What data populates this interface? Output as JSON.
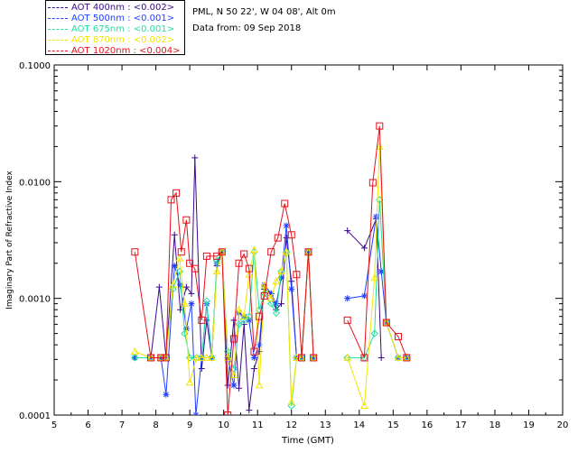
{
  "header": {
    "location": "PML, N 50 22', W 04 08', Alt 0m",
    "date_line": "Data from: 09 Sep 2018"
  },
  "legend": [
    {
      "label": "AOT  400nm : <0.002>",
      "color": "#3b0a8f"
    },
    {
      "label": "AOT  500nm : <0.001>",
      "color": "#1f3fff"
    },
    {
      "label": "AOT  675nm : <0.001>",
      "color": "#22e0a0"
    },
    {
      "label": "AOT  870nm : <0.002>",
      "color": "#f4e400"
    },
    {
      "label": "AOT 1020nm : <0.004>",
      "color": "#e8101a"
    }
  ],
  "chart_data": {
    "type": "line",
    "title": "",
    "xlabel": "Time (GMT)",
    "ylabel": "Imaginary Part of Refractive Index",
    "xlim": [
      5,
      20
    ],
    "ylim": [
      0.0001,
      0.1
    ],
    "yscale": "log",
    "xticks": [
      "5",
      "6",
      "7",
      "8",
      "9",
      "10",
      "11",
      "12",
      "13",
      "14",
      "15",
      "16",
      "17",
      "18",
      "19",
      "20"
    ],
    "yticks": [
      "0.0001",
      "0.0010",
      "0.0100",
      "0.1000"
    ],
    "series": [
      {
        "name": "AOT 400nm",
        "marker": "plus",
        "points": [
          [
            7.38,
            0.00031
          ],
          [
            7.85,
            0.00031
          ],
          [
            8.1,
            0.00125
          ],
          [
            8.3,
            0.00031
          ],
          [
            8.55,
            0.0035
          ],
          [
            8.72,
            0.0008
          ],
          [
            8.9,
            0.00125
          ],
          [
            9.05,
            0.0011
          ],
          [
            9.15,
            0.016
          ],
          [
            9.35,
            0.00025
          ],
          [
            9.5,
            0.00065
          ],
          [
            9.65,
            0.00031
          ],
          [
            9.8,
            0.0019
          ],
          [
            9.95,
            0.0025
          ],
          [
            10.12,
            0.00018
          ],
          [
            10.3,
            0.00065
          ],
          [
            10.45,
            0.00017
          ],
          [
            10.6,
            0.0006
          ],
          [
            10.75,
            0.00011
          ],
          [
            10.9,
            0.00025
          ],
          [
            11.05,
            0.00035
          ],
          [
            11.2,
            0.0012
          ],
          [
            11.4,
            0.0011
          ],
          [
            11.55,
            0.0008
          ],
          [
            11.7,
            0.0009
          ],
          [
            11.85,
            0.0033
          ],
          [
            12.0,
            0.0014
          ],
          [
            12.15,
            0.00031
          ],
          [
            12.3,
            0.00031
          ],
          [
            12.5,
            0.0025
          ],
          [
            12.65,
            0.00031
          ],
          [
            13.65,
            0.0038
          ],
          [
            14.15,
            0.0027
          ],
          [
            14.5,
            0.0048
          ],
          [
            14.65,
            0.00031
          ]
        ]
      },
      {
        "name": "AOT 500nm",
        "marker": "star",
        "points": [
          [
            7.38,
            0.00031
          ],
          [
            7.85,
            0.00031
          ],
          [
            8.15,
            0.00031
          ],
          [
            8.3,
            0.00015
          ],
          [
            8.55,
            0.0019
          ],
          [
            8.72,
            0.0013
          ],
          [
            8.9,
            0.00055
          ],
          [
            9.05,
            0.0009
          ],
          [
            9.18,
            0.0001
          ],
          [
            9.35,
            0.00031
          ],
          [
            9.5,
            0.0009
          ],
          [
            9.65,
            0.00031
          ],
          [
            9.8,
            0.002
          ],
          [
            9.95,
            0.0025
          ],
          [
            10.12,
            0.00031
          ],
          [
            10.3,
            0.00018
          ],
          [
            10.45,
            0.00075
          ],
          [
            10.6,
            0.0007
          ],
          [
            10.75,
            0.00065
          ],
          [
            10.9,
            0.00031
          ],
          [
            11.05,
            0.0004
          ],
          [
            11.2,
            0.0013
          ],
          [
            11.4,
            0.0011
          ],
          [
            11.55,
            0.0009
          ],
          [
            11.7,
            0.0015
          ],
          [
            11.85,
            0.0042
          ],
          [
            12.0,
            0.0012
          ],
          [
            12.15,
            0.00031
          ],
          [
            12.3,
            0.00031
          ],
          [
            12.5,
            0.0025
          ],
          [
            12.65,
            0.00031
          ],
          [
            13.65,
            0.001
          ],
          [
            14.15,
            0.00105
          ],
          [
            14.5,
            0.005
          ],
          [
            14.65,
            0.0017
          ],
          [
            14.8,
            0.00062
          ],
          [
            15.15,
            0.00031
          ],
          [
            15.4,
            0.00031
          ]
        ]
      },
      {
        "name": "AOT 675nm",
        "marker": "diamond",
        "points": [
          [
            7.38,
            0.00031
          ],
          [
            7.85,
            0.00031
          ],
          [
            8.15,
            0.00031
          ],
          [
            8.3,
            0.00031
          ],
          [
            8.5,
            0.0012
          ],
          [
            8.7,
            0.0017
          ],
          [
            8.85,
            0.0005
          ],
          [
            9.0,
            0.00031
          ],
          [
            9.2,
            0.00031
          ],
          [
            9.35,
            0.00031
          ],
          [
            9.5,
            0.00095
          ],
          [
            9.65,
            0.00031
          ],
          [
            9.8,
            0.0021
          ],
          [
            9.95,
            0.0025
          ],
          [
            10.12,
            0.00035
          ],
          [
            10.3,
            0.00025
          ],
          [
            10.45,
            0.0006
          ],
          [
            10.6,
            0.00065
          ],
          [
            10.75,
            0.0007
          ],
          [
            10.9,
            0.0025
          ],
          [
            11.05,
            0.0008
          ],
          [
            11.2,
            0.0011
          ],
          [
            11.4,
            0.0009
          ],
          [
            11.55,
            0.00075
          ],
          [
            11.7,
            0.0017
          ],
          [
            11.85,
            0.0025
          ],
          [
            12.0,
            0.00012
          ],
          [
            12.15,
            0.00031
          ],
          [
            12.3,
            0.00031
          ],
          [
            12.5,
            0.0025
          ],
          [
            12.65,
            0.00031
          ],
          [
            13.65,
            0.00031
          ],
          [
            14.15,
            0.00031
          ],
          [
            14.45,
            0.0005
          ],
          [
            14.6,
            0.007
          ],
          [
            14.8,
            0.00062
          ],
          [
            15.15,
            0.00031
          ],
          [
            15.4,
            0.00031
          ]
        ]
      },
      {
        "name": "AOT 870nm",
        "marker": "triangle",
        "points": [
          [
            7.38,
            0.00035
          ],
          [
            7.85,
            0.00031
          ],
          [
            8.15,
            0.00031
          ],
          [
            8.3,
            0.00031
          ],
          [
            8.5,
            0.0013
          ],
          [
            8.7,
            0.0022
          ],
          [
            8.85,
            0.0009
          ],
          [
            9.0,
            0.00019
          ],
          [
            9.2,
            0.00031
          ],
          [
            9.35,
            0.00031
          ],
          [
            9.5,
            0.00031
          ],
          [
            9.65,
            0.00031
          ],
          [
            9.8,
            0.0017
          ],
          [
            9.95,
            0.0025
          ],
          [
            10.12,
            0.00031
          ],
          [
            10.3,
            0.00022
          ],
          [
            10.45,
            0.0008
          ],
          [
            10.6,
            0.0007
          ],
          [
            10.75,
            0.0016
          ],
          [
            10.9,
            0.0026
          ],
          [
            11.05,
            0.00018
          ],
          [
            11.2,
            0.0013
          ],
          [
            11.4,
            0.001
          ],
          [
            11.55,
            0.0014
          ],
          [
            11.7,
            0.0017
          ],
          [
            11.85,
            0.0025
          ],
          [
            12.0,
            0.00013
          ],
          [
            12.15,
            0.00031
          ],
          [
            12.3,
            0.00031
          ],
          [
            12.5,
            0.0025
          ],
          [
            12.65,
            0.00031
          ],
          [
            13.65,
            0.00031
          ],
          [
            14.15,
            0.00012
          ],
          [
            14.45,
            0.0015
          ],
          [
            14.6,
            0.02
          ],
          [
            14.8,
            0.00062
          ],
          [
            15.15,
            0.00031
          ],
          [
            15.4,
            0.00031
          ]
        ]
      },
      {
        "name": "AOT 1020nm",
        "marker": "square",
        "points": [
          [
            7.38,
            0.0025
          ],
          [
            7.85,
            0.00031
          ],
          [
            8.15,
            0.00031
          ],
          [
            8.3,
            0.00031
          ],
          [
            8.45,
            0.007
          ],
          [
            8.6,
            0.008
          ],
          [
            8.75,
            0.0025
          ],
          [
            8.9,
            0.0047
          ],
          [
            9.0,
            0.002
          ],
          [
            9.15,
            0.0018
          ],
          [
            9.35,
            0.00065
          ],
          [
            9.5,
            0.0023
          ],
          [
            9.8,
            0.0023
          ],
          [
            9.95,
            0.0025
          ],
          [
            10.12,
            0.0001
          ],
          [
            10.3,
            0.00045
          ],
          [
            10.45,
            0.002
          ],
          [
            10.6,
            0.0024
          ],
          [
            10.75,
            0.0018
          ],
          [
            10.9,
            0.00035
          ],
          [
            11.05,
            0.0007
          ],
          [
            11.2,
            0.00105
          ],
          [
            11.4,
            0.0025
          ],
          [
            11.6,
            0.0033
          ],
          [
            11.8,
            0.0065
          ],
          [
            12.0,
            0.0035
          ],
          [
            12.15,
            0.0016
          ],
          [
            12.3,
            0.00031
          ],
          [
            12.5,
            0.0025
          ],
          [
            12.65,
            0.00031
          ],
          [
            13.65,
            0.00065
          ],
          [
            14.15,
            0.00031
          ],
          [
            14.4,
            0.0098
          ],
          [
            14.6,
            0.03
          ],
          [
            14.8,
            0.00062
          ],
          [
            15.15,
            0.00047
          ],
          [
            15.4,
            0.00031
          ]
        ]
      }
    ]
  }
}
